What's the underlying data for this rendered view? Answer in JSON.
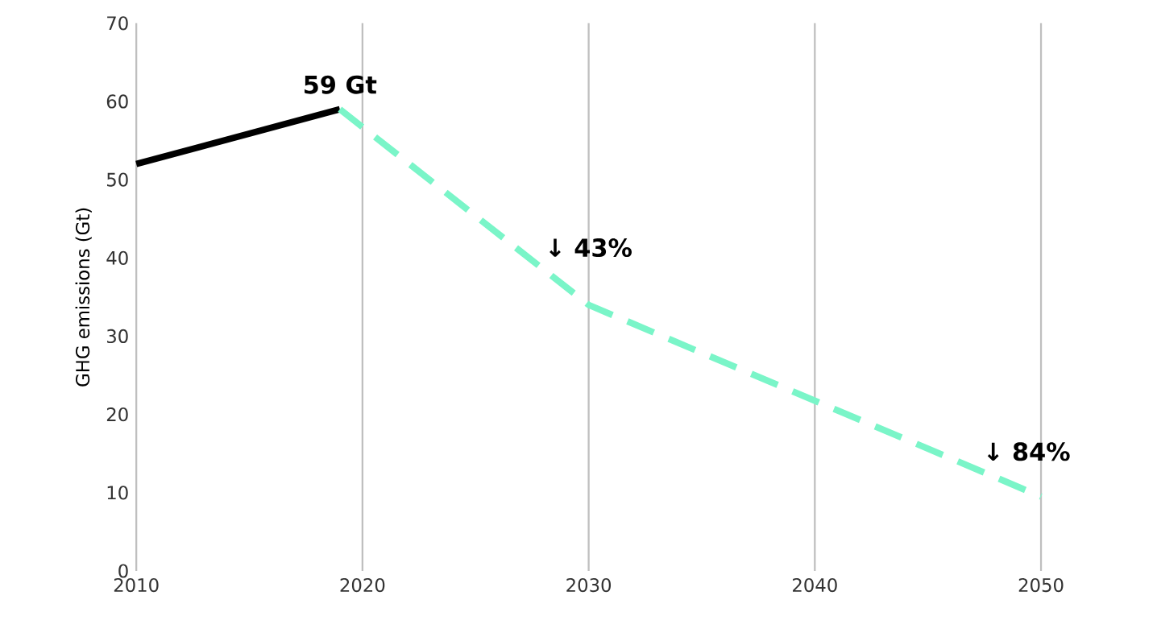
{
  "chart_data": {
    "type": "line",
    "ylabel": "GHG emissions (Gt)",
    "xlim": [
      2010,
      2050
    ],
    "xticks": [
      2010,
      2020,
      2030,
      2040,
      2050
    ],
    "ylim": [
      0,
      70
    ],
    "yticks": [
      0,
      10,
      20,
      30,
      40,
      50,
      60,
      70
    ],
    "grid": "x",
    "marker": "none",
    "series": [
      {
        "color": "#000000",
        "line_style": "solid",
        "x": [
          2010,
          2019
        ],
        "values": [
          52,
          59
        ]
      },
      {
        "color": "#7af5c8",
        "line_style": "dashed",
        "x": [
          2019,
          2030,
          2050
        ],
        "values": [
          59,
          34,
          9.5
        ]
      }
    ],
    "annotations": [
      {
        "text": "59 Gt",
        "x": 2019,
        "y": 59
      },
      {
        "text": "↓ 43%",
        "x": 2030,
        "y": 34
      },
      {
        "text": "↓ 84%",
        "x": 2050,
        "y": 9.5
      }
    ]
  }
}
